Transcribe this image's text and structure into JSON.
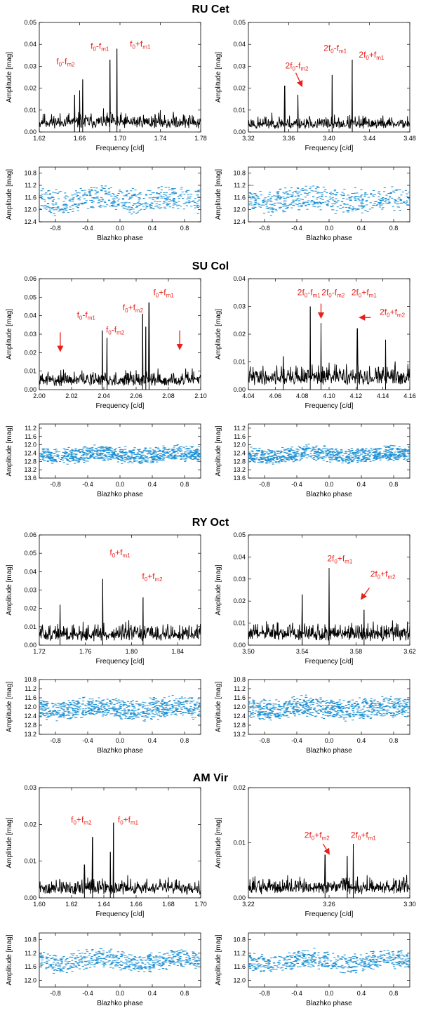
{
  "figure": {
    "accent_red": "#e8201b",
    "scatter_blue": "#1b8fd2",
    "line_black": "#000000"
  },
  "chart_data": [
    {
      "star": "RU Cet",
      "panels": [
        {
          "type": "line",
          "xlabel": "Frequency [c/d]",
          "ylabel": "Amplitude [mag]",
          "xlim": [
            1.62,
            1.78
          ],
          "ylim": [
            0,
            0.05
          ],
          "xticks": [
            "1.62",
            "1.66",
            "1.70",
            "1.74",
            "1.78"
          ],
          "yticks": [
            "0.00",
            "0.01",
            "0.02",
            "0.03",
            "0.04",
            "0.05"
          ],
          "noise": 0.006,
          "seed": 11,
          "peaks": [
            {
              "x": 1.663,
              "y": 0.024
            },
            {
              "x": 1.66,
              "y": 0.019
            },
            {
              "x": 1.69,
              "y": 0.033
            },
            {
              "x": 1.697,
              "y": 0.038
            },
            {
              "x": 1.655,
              "y": 0.017
            }
          ],
          "annotations": [
            {
              "id": "a1",
              "base": "f",
              "b0": "0",
              "op": "-",
              "m": "m2",
              "t": "f0-fm2",
              "x": 1.646,
              "y": 0.031
            },
            {
              "id": "a2",
              "base": "f",
              "b0": "0",
              "op": "-",
              "m": "m1",
              "t": "f0-fm1",
              "x": 1.68,
              "y": 0.038
            },
            {
              "id": "a3",
              "base": "f",
              "b0": "0",
              "op": "+",
              "m": "m1",
              "t": "f0+fm1",
              "x": 1.72,
              "y": 0.039
            }
          ],
          "arrows": []
        },
        {
          "type": "line",
          "xlabel": "Frequency [c/d]",
          "ylabel": "Amplitude [mag]",
          "xlim": [
            3.32,
            3.48
          ],
          "ylim": [
            0,
            0.05
          ],
          "xticks": [
            "3.32",
            "3.36",
            "3.40",
            "3.44",
            "3.48"
          ],
          "yticks": [
            "0.00",
            "0.01",
            "0.02",
            "0.03",
            "0.04",
            "0.05"
          ],
          "noise": 0.005,
          "seed": 23,
          "peaks": [
            {
              "x": 3.356,
              "y": 0.021
            },
            {
              "x": 3.369,
              "y": 0.017
            },
            {
              "x": 3.403,
              "y": 0.026
            },
            {
              "x": 3.423,
              "y": 0.033
            }
          ],
          "annotations": [
            {
              "id": "b1",
              "base": "2f",
              "b0": "0",
              "op": "-",
              "m": "m2",
              "t": "2f0-fm2",
              "x": 3.368,
              "y": 0.029
            },
            {
              "id": "b2",
              "base": "2f",
              "b0": "0",
              "op": "-",
              "m": "m1",
              "t": "2f0-fm1",
              "x": 3.406,
              "y": 0.037
            },
            {
              "id": "b3",
              "base": "2f",
              "b0": "0",
              "op": "+",
              "m": "m1",
              "t": "2f0+fm1",
              "x": 3.442,
              "y": 0.034
            }
          ],
          "arrows": [
            {
              "x1": 3.367,
              "y1": 0.027,
              "x2": 3.373,
              "y2": 0.021
            }
          ]
        },
        {
          "type": "scatter",
          "xlabel": "Blazhko phase",
          "ylabel": "Amplitude [mag]",
          "xlim": [
            -1.0,
            1.0
          ],
          "ylim": [
            10.6,
            12.4
          ],
          "invert": true,
          "xticks": [
            "-0.8",
            "-0.4",
            "0.0",
            "0.4",
            "0.8"
          ],
          "yticks": [
            "10.8",
            "11.2",
            "11.6",
            "12.0",
            "12.4"
          ],
          "mean": 11.7,
          "spread": 0.38,
          "npts": 520,
          "seed": 5
        },
        {
          "type": "scatter",
          "xlabel": "Blazhko phase",
          "ylabel": "Amplitude [mag]",
          "xlim": [
            -1.0,
            1.0
          ],
          "ylim": [
            10.6,
            12.4
          ],
          "invert": true,
          "xticks": [
            "-0.8",
            "-0.4",
            "0.0",
            "0.4",
            "0.8"
          ],
          "yticks": [
            "10.8",
            "11.2",
            "11.6",
            "12.0",
            "12.4"
          ],
          "mean": 11.7,
          "spread": 0.38,
          "npts": 520,
          "seed": 9
        }
      ]
    },
    {
      "star": "SU Col",
      "panels": [
        {
          "type": "line",
          "xlabel": "Frequency [c/d]",
          "ylabel": "Amplitude [mag]",
          "xlim": [
            2.0,
            2.1
          ],
          "ylim": [
            0,
            0.06
          ],
          "xticks": [
            "2.00",
            "2.02",
            "2.04",
            "2.06",
            "2.08",
            "2.10"
          ],
          "yticks": [
            "0.00",
            "0.01",
            "0.02",
            "0.03",
            "0.04",
            "0.05",
            "0.06"
          ],
          "noise": 0.007,
          "seed": 31,
          "peaks": [
            {
              "x": 2.039,
              "y": 0.032
            },
            {
              "x": 2.042,
              "y": 0.028
            },
            {
              "x": 2.064,
              "y": 0.041
            },
            {
              "x": 2.068,
              "y": 0.047
            },
            {
              "x": 2.066,
              "y": 0.034
            }
          ],
          "annotations": [
            {
              "id": "c1",
              "base": "f",
              "b0": "0",
              "op": "-",
              "m": "m1",
              "t": "f0-fm1",
              "x": 2.029,
              "y": 0.039
            },
            {
              "id": "c2",
              "base": "f",
              "b0": "0",
              "op": "-",
              "m": "m2",
              "t": "f0-fm2",
              "x": 2.047,
              "y": 0.031
            },
            {
              "id": "c3",
              "base": "f",
              "b0": "0",
              "op": "+",
              "m": "m2",
              "t": "f0+fm2",
              "x": 2.058,
              "y": 0.043
            },
            {
              "id": "c4",
              "base": "f",
              "b0": "0",
              "op": "+",
              "m": "m1",
              "t": "f0+fm1",
              "x": 2.077,
              "y": 0.051
            }
          ],
          "arrows": [
            {
              "x1": 2.013,
              "y1": 0.031,
              "x2": 2.013,
              "y2": 0.021
            },
            {
              "x1": 2.087,
              "y1": 0.032,
              "x2": 2.087,
              "y2": 0.022
            }
          ]
        },
        {
          "type": "line",
          "xlabel": "Frequency [c/d]",
          "ylabel": "Amplitude [mag]",
          "xlim": [
            4.04,
            4.16
          ],
          "ylim": [
            0,
            0.04
          ],
          "xticks": [
            "4.04",
            "4.06",
            "4.08",
            "4.10",
            "4.12",
            "4.14",
            "4.16"
          ],
          "yticks": [
            "0.00",
            "0.01",
            "0.02",
            "0.03",
            "0.04"
          ],
          "noise": 0.006,
          "seed": 41,
          "peaks": [
            {
              "x": 4.066,
              "y": 0.012
            },
            {
              "x": 4.086,
              "y": 0.03
            },
            {
              "x": 4.094,
              "y": 0.024
            },
            {
              "x": 4.121,
              "y": 0.022
            },
            {
              "x": 4.142,
              "y": 0.018
            }
          ],
          "annotations": [
            {
              "id": "d1",
              "base": "2f",
              "b0": "0",
              "op": "-",
              "m": "m1",
              "t": "2f0-fm1",
              "x": 4.085,
              "y": 0.034
            },
            {
              "id": "d2",
              "base": "2f",
              "b0": "0",
              "op": "-",
              "m": "m2",
              "t": "2f0-fm2",
              "x": 4.103,
              "y": 0.034
            },
            {
              "id": "d3",
              "base": "2f",
              "b0": "0",
              "op": "+",
              "m": "m1",
              "t": "2f0+fm1",
              "x": 4.126,
              "y": 0.034
            },
            {
              "id": "d4",
              "base": "2f",
              "b0": "0",
              "op": "+",
              "m": "m2",
              "t": "2f0+fm2",
              "x": 4.147,
              "y": 0.027
            }
          ],
          "arrows": [
            {
              "x1": 4.094,
              "y1": 0.031,
              "x2": 4.094,
              "y2": 0.026
            },
            {
              "x1": 4.131,
              "y1": 0.026,
              "x2": 4.123,
              "y2": 0.026
            }
          ]
        },
        {
          "type": "scatter",
          "xlabel": "Blazhko phase",
          "ylabel": "Amplitude [mag]",
          "xlim": [
            -1.0,
            1.0
          ],
          "ylim": [
            11.0,
            13.6
          ],
          "invert": true,
          "xticks": [
            "-0.8",
            "-0.4",
            "0.0",
            "0.4",
            "0.8"
          ],
          "yticks": [
            "11.2",
            "11.6",
            "12.0",
            "12.4",
            "12.8",
            "13.2",
            "13.6"
          ],
          "mean": 12.5,
          "spread": 0.34,
          "npts": 900,
          "seed": 13
        },
        {
          "type": "scatter",
          "xlabel": "Blazhko phase",
          "ylabel": "Amplitude [mag]",
          "xlim": [
            -1.0,
            1.0
          ],
          "ylim": [
            11.0,
            13.6
          ],
          "invert": true,
          "xticks": [
            "-0.8",
            "-0.4",
            "0.0",
            "0.4",
            "0.8"
          ],
          "yticks": [
            "11.2",
            "11.6",
            "12.0",
            "12.4",
            "12.8",
            "13.2",
            "13.6"
          ],
          "mean": 12.5,
          "spread": 0.34,
          "npts": 900,
          "seed": 17
        }
      ]
    },
    {
      "star": "RY Oct",
      "panels": [
        {
          "type": "line",
          "xlabel": "Frequency [c/d]",
          "ylabel": "Amplitude [mag]",
          "xlim": [
            1.72,
            1.86
          ],
          "ylim": [
            0,
            0.06
          ],
          "xticks": [
            "1.72",
            "1.76",
            "1.80",
            "1.84"
          ],
          "yticks": [
            "0.00",
            "0.01",
            "0.02",
            "0.03",
            "0.04",
            "0.05",
            "0.06"
          ],
          "noise": 0.008,
          "seed": 51,
          "peaks": [
            {
              "x": 1.775,
              "y": 0.036
            },
            {
              "x": 1.81,
              "y": 0.026
            },
            {
              "x": 1.738,
              "y": 0.022
            }
          ],
          "annotations": [
            {
              "id": "e1",
              "base": "f",
              "b0": "0",
              "op": "+",
              "m": "m1",
              "t": "f0+fm1",
              "x": 1.79,
              "y": 0.049
            },
            {
              "id": "e2",
              "base": "f",
              "b0": "0",
              "op": "+",
              "m": "m2",
              "t": "f0+fm2",
              "x": 1.818,
              "y": 0.036
            }
          ],
          "arrows": []
        },
        {
          "type": "line",
          "xlabel": "Frequency [c/d]",
          "ylabel": "Amplitude [mag]",
          "xlim": [
            3.5,
            3.62
          ],
          "ylim": [
            0,
            0.05
          ],
          "xticks": [
            "3.50",
            "3.54",
            "3.58",
            "3.62"
          ],
          "yticks": [
            "0.00",
            "0.01",
            "0.02",
            "0.03",
            "0.04",
            "0.05"
          ],
          "noise": 0.007,
          "seed": 61,
          "peaks": [
            {
              "x": 3.54,
              "y": 0.023
            },
            {
              "x": 3.56,
              "y": 0.035
            },
            {
              "x": 3.586,
              "y": 0.016
            }
          ],
          "annotations": [
            {
              "id": "f1",
              "base": "2f",
              "b0": "0",
              "op": "+",
              "m": "m1",
              "t": "2f0+fm1",
              "x": 3.568,
              "y": 0.038
            },
            {
              "id": "f2",
              "base": "2f",
              "b0": "0",
              "op": "+",
              "m": "m2",
              "t": "2f0+fm2",
              "x": 3.6,
              "y": 0.031
            }
          ],
          "arrows": [
            {
              "x1": 3.59,
              "y1": 0.026,
              "x2": 3.584,
              "y2": 0.021
            }
          ]
        },
        {
          "type": "scatter",
          "xlabel": "Blazhko phase",
          "ylabel": "Amplitude [mag]",
          "xlim": [
            -1.0,
            1.0
          ],
          "ylim": [
            10.8,
            13.2
          ],
          "invert": true,
          "xticks": [
            "-0.8",
            "-0.4",
            "0.0",
            "0.4",
            "0.8"
          ],
          "yticks": [
            "10.8",
            "11.2",
            "11.6",
            "12.0",
            "12.4",
            "12.8",
            "13.2"
          ],
          "mean": 12.1,
          "spread": 0.42,
          "npts": 820,
          "seed": 19
        },
        {
          "type": "scatter",
          "xlabel": "Blazhko phase",
          "ylabel": "Amplitude [mag]",
          "xlim": [
            -1.0,
            1.0
          ],
          "ylim": [
            10.8,
            13.2
          ],
          "invert": true,
          "xticks": [
            "-0.8",
            "-0.4",
            "0.0",
            "0.4",
            "0.8"
          ],
          "yticks": [
            "10.8",
            "11.2",
            "11.6",
            "12.0",
            "12.4",
            "12.8",
            "13.2"
          ],
          "mean": 12.1,
          "spread": 0.42,
          "npts": 820,
          "seed": 29
        }
      ]
    },
    {
      "star": "AM Vir",
      "panels": [
        {
          "type": "line",
          "xlabel": "Frequency [c/d]",
          "ylabel": "Amplitude [mag]",
          "xlim": [
            1.6,
            1.7
          ],
          "ylim": [
            0,
            0.03
          ],
          "xticks": [
            "1.60",
            "1.62",
            "1.64",
            "1.66",
            "1.68",
            "1.70"
          ],
          "yticks": [
            "0.00",
            "0.01",
            "0.02",
            "0.03"
          ],
          "noise": 0.0035,
          "seed": 71,
          "peaks": [
            {
              "x": 1.633,
              "y": 0.0165
            },
            {
              "x": 1.646,
              "y": 0.0205
            },
            {
              "x": 1.644,
              "y": 0.0125
            },
            {
              "x": 1.628,
              "y": 0.009
            }
          ],
          "annotations": [
            {
              "id": "g1",
              "base": "f",
              "b0": "0",
              "op": "+",
              "m": "m2",
              "t": "f0+fm2",
              "x": 1.626,
              "y": 0.0205
            },
            {
              "id": "g2",
              "base": "f",
              "b0": "0",
              "op": "+",
              "m": "m1",
              "t": "f0+fm1",
              "x": 1.655,
              "y": 0.0205
            }
          ],
          "arrows": []
        },
        {
          "type": "line",
          "xlabel": "Frequency [c/d]",
          "ylabel": "Amplitude [mag]",
          "xlim": [
            3.22,
            3.3
          ],
          "ylim": [
            0,
            0.02
          ],
          "xticks": [
            "3.22",
            "3.26",
            "3.30"
          ],
          "yticks": [
            "0.00",
            "0.01",
            "0.02"
          ],
          "noise": 0.0026,
          "seed": 81,
          "peaks": [
            {
              "x": 3.258,
              "y": 0.0078
            },
            {
              "x": 3.272,
              "y": 0.0098
            },
            {
              "x": 3.269,
              "y": 0.0076
            }
          ],
          "annotations": [
            {
              "id": "h1",
              "base": "2f",
              "b0": "0",
              "op": "+",
              "m": "m2",
              "t": "2f0+fm2",
              "x": 3.254,
              "y": 0.0109
            },
            {
              "id": "h2",
              "base": "2f",
              "b0": "0",
              "op": "+",
              "m": "m1",
              "t": "2f0+fm1",
              "x": 3.277,
              "y": 0.0109
            }
          ],
          "arrows": [
            {
              "x1": 3.257,
              "y1": 0.0098,
              "x2": 3.26,
              "y2": 0.008
            }
          ]
        },
        {
          "type": "scatter",
          "xlabel": "Blazhko phase",
          "ylabel": "Amplitude [mag]",
          "xlim": [
            -1.0,
            1.0
          ],
          "ylim": [
            10.6,
            12.2
          ],
          "invert": true,
          "xticks": [
            "-0.8",
            "-0.4",
            "0.0",
            "0.4",
            "0.8"
          ],
          "yticks": [
            "10.8",
            "11.2",
            "11.6",
            "12.0"
          ],
          "mean": 11.45,
          "spread": 0.25,
          "npts": 620,
          "seed": 37
        },
        {
          "type": "scatter",
          "xlabel": "Blazhko phase",
          "ylabel": "Amplitude [mag]",
          "xlim": [
            -1.0,
            1.0
          ],
          "ylim": [
            10.6,
            12.2
          ],
          "invert": true,
          "xticks": [
            "-0.8",
            "-0.4",
            "0.0",
            "0.4",
            "0.8"
          ],
          "yticks": [
            "10.8",
            "11.2",
            "11.6",
            "12.0"
          ],
          "mean": 11.45,
          "spread": 0.25,
          "npts": 620,
          "seed": 43
        }
      ]
    }
  ]
}
